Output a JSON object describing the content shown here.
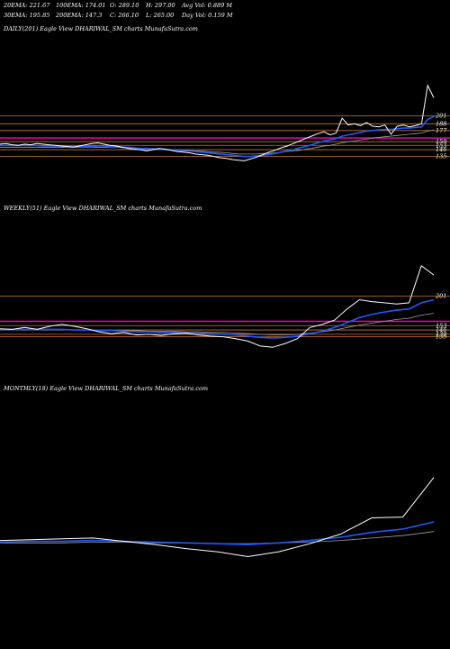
{
  "header": {
    "ema20": "20EMA: 221.67",
    "ema100": "100EMA: 174.01",
    "open": "O: 289.10",
    "high": "H: 297.00",
    "avgvol": "Avg Vol: 0.889 M",
    "ema30": "30EMA: 195.85",
    "ema200": "200EMA: 147.3",
    "close": "C: 266.10",
    "low": "L: 265.00",
    "dayvol": "Day Vol: 0.159 M"
  },
  "colors": {
    "price": "#ffffff",
    "ema_blue": "#1e5aff",
    "ema_light": "#a0a0a0",
    "support_orange": "#c87832",
    "support_magenta": "#ff00c8"
  },
  "chart_data": [
    {
      "type": "line",
      "title": "DAILY(201) Eagle  View  DHARIWAL_SM charts MunafaSutra.com",
      "levels": [
        "201",
        "188",
        "177",
        "159",
        "153",
        "146",
        "135"
      ],
      "series": [
        {
          "values": [
            155,
            156,
            154,
            153,
            155,
            154,
            156,
            155,
            154,
            153,
            152,
            151,
            150,
            152,
            154,
            156,
            157,
            155,
            153,
            152,
            150,
            148,
            147,
            146,
            144,
            146,
            148,
            147,
            145,
            143,
            142,
            141,
            139,
            138,
            137,
            135,
            133,
            132,
            130,
            129,
            128,
            131,
            134,
            138,
            142,
            145,
            149,
            152,
            156,
            160,
            164,
            168,
            172,
            175,
            170,
            173,
            197,
            186,
            188,
            185,
            190,
            184,
            183,
            186,
            171,
            184,
            186,
            183,
            185,
            188,
            250,
            230
          ]
        },
        {
          "values": [
            153,
            153,
            153,
            153,
            153,
            153,
            153,
            152,
            152,
            152,
            152,
            151,
            151,
            151,
            151,
            151,
            152,
            152,
            151,
            151,
            150,
            150,
            149,
            148,
            148,
            147,
            147,
            146,
            146,
            145,
            144,
            144,
            143,
            142,
            141,
            140,
            139,
            138,
            137,
            136,
            135,
            135,
            136,
            137,
            138,
            140,
            142,
            144,
            146,
            149,
            151,
            154,
            157,
            160,
            162,
            164,
            168,
            170,
            172,
            174,
            176,
            177,
            178,
            179,
            179,
            180,
            181,
            181,
            182,
            183,
            195,
            200
          ]
        },
        {
          "values": [
            150,
            150,
            150,
            150,
            150,
            150,
            150,
            150,
            150,
            150,
            150,
            150,
            150,
            150,
            150,
            150,
            150,
            150,
            150,
            150,
            149,
            149,
            149,
            148,
            148,
            148,
            147,
            147,
            146,
            146,
            145,
            145,
            144,
            144,
            143,
            142,
            142,
            141,
            140,
            139,
            139,
            139,
            139,
            140,
            140,
            141,
            142,
            143,
            144,
            145,
            147,
            148,
            150,
            152,
            153,
            155,
            157,
            159,
            160,
            162,
            163,
            165,
            166,
            167,
            168,
            169,
            170,
            171,
            172,
            173,
            176,
            178
          ]
        }
      ]
    },
    {
      "type": "line",
      "title": "WEEKLY(51) Eagle  View  DHARIWAL_SM charts MunafaSutra.com",
      "levels": [
        "201",
        "153",
        "146",
        "139",
        "135"
      ],
      "series": [
        {
          "values": [
            148,
            147,
            150,
            147,
            152,
            155,
            152,
            148,
            143,
            140,
            142,
            138,
            139,
            137,
            140,
            141,
            138,
            136,
            135,
            132,
            128,
            120,
            118,
            124,
            132,
            150,
            155,
            162,
            180,
            195,
            192,
            190,
            188,
            190,
            250,
            235
          ]
        },
        {
          "values": [
            147,
            147,
            147,
            147,
            147,
            147,
            146,
            146,
            145,
            145,
            144,
            143,
            143,
            142,
            142,
            141,
            141,
            140,
            139,
            138,
            136,
            134,
            133,
            134,
            136,
            140,
            144,
            150,
            158,
            166,
            171,
            175,
            178,
            180,
            190,
            195
          ]
        },
        {
          "values": [
            146,
            146,
            146,
            146,
            146,
            146,
            146,
            146,
            145,
            145,
            145,
            145,
            144,
            144,
            144,
            143,
            143,
            142,
            142,
            141,
            140,
            139,
            138,
            138,
            139,
            141,
            143,
            146,
            150,
            154,
            157,
            160,
            163,
            165,
            170,
            173
          ]
        }
      ]
    },
    {
      "type": "line",
      "title": "MONTHLY(18) Eagle  View  DHARIWAL_SM charts MunafaSutra.com",
      "levels": [],
      "series": [
        {
          "values": [
            152,
            153,
            154,
            155,
            151,
            147,
            142,
            138,
            132,
            138,
            148,
            160,
            180,
            181,
            230
          ]
        },
        {
          "values": [
            150,
            151,
            151,
            152,
            151,
            150,
            149,
            148,
            147,
            149,
            152,
            156,
            162,
            166,
            175
          ]
        },
        {
          "values": [
            149,
            149,
            149,
            150,
            150,
            149,
            149,
            148,
            148,
            149,
            150,
            152,
            155,
            158,
            163
          ]
        }
      ]
    }
  ]
}
